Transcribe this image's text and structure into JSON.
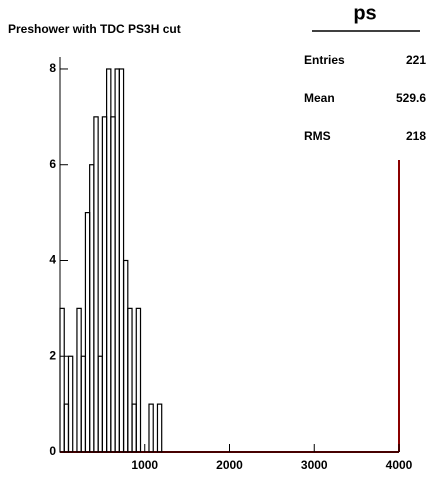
{
  "chart_data": {
    "type": "histogram",
    "title": "Preshower with TDC PS3H cut",
    "bins": [
      0,
      50,
      100,
      150,
      200,
      250,
      300,
      350,
      400,
      450,
      500,
      550,
      600,
      650,
      700,
      750,
      800,
      850,
      900,
      950,
      1000,
      1050,
      1100,
      1150,
      1200,
      1250,
      1300,
      1350,
      1400,
      1450,
      1500,
      1550,
      1600,
      1650,
      1700,
      1750,
      1800,
      1850,
      1900,
      1950,
      2000,
      2050,
      2100,
      2150,
      2200,
      2250,
      2300,
      2350,
      2400,
      2450,
      2500,
      2550,
      2600,
      2650,
      2700,
      2750,
      2800,
      2850,
      2900,
      2950,
      3000,
      3050,
      3100,
      3150,
      3200,
      3250,
      3300,
      3350,
      3400,
      3450,
      3500,
      3550,
      3600,
      3650,
      3700,
      3750,
      3800,
      3850,
      3900,
      3950,
      4000
    ],
    "values": [
      3,
      1,
      2,
      0,
      3,
      2,
      5,
      6,
      7,
      2,
      7,
      8,
      7,
      8,
      8,
      4,
      3,
      1,
      3,
      0,
      0,
      1,
      0,
      1,
      0,
      0,
      0,
      0,
      0,
      0,
      0,
      0,
      0,
      0,
      0,
      0,
      0,
      0,
      0,
      0,
      0,
      0,
      0,
      0,
      0,
      0,
      0,
      0,
      0,
      0,
      0,
      0,
      0,
      0,
      0,
      0,
      0,
      0,
      0,
      0,
      0,
      0,
      0,
      0,
      0,
      0,
      0,
      0,
      0,
      0,
      0,
      0,
      0,
      0,
      0,
      0,
      0,
      0,
      0,
      0
    ],
    "color": "#000000",
    "xlim": [
      0,
      4000
    ],
    "xticks": [
      1000,
      2000,
      3000,
      4000
    ],
    "ylim": [
      0,
      8.25
    ],
    "yticks": [
      0,
      2,
      4,
      6,
      8
    ],
    "stats": {
      "title": "ps",
      "labels": [
        "Entries",
        "Mean",
        "RMS"
      ],
      "values": [
        221,
        529.6,
        218
      ]
    }
  }
}
